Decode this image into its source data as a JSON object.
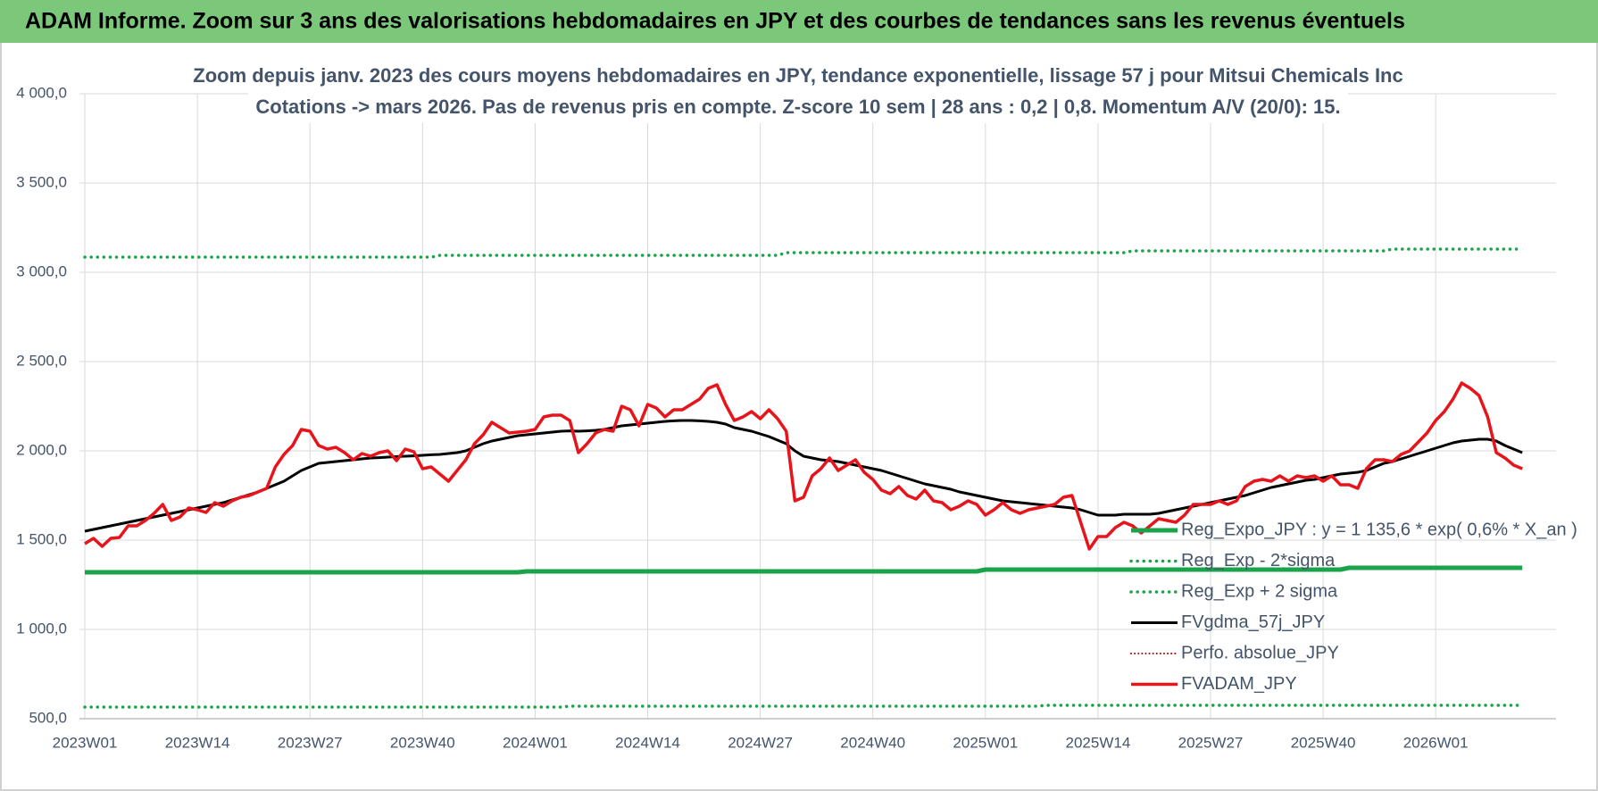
{
  "chart_data": {
    "type": "line",
    "title": "ADAM Informe. Zoom sur 3 ans des valorisations hebdomadaires en JPY et des courbes de tendances sans les revenus éventuels",
    "subtitle": [
      "Zoom depuis janv. 2023 des cours moyens hebdomadaires en JPY, tendance exponentielle, lissage 57 j pour Mitsui Chemicals Inc",
      "Cotations -> mars 2026. Pas de revenus pris en compte. Z-score 10 sem | 28 ans : 0,2 | 0,8. Momentum A/V (20/0): 15."
    ],
    "categories": [
      "2023W01",
      null,
      null,
      null,
      null,
      null,
      null,
      null,
      null,
      null,
      null,
      null,
      null,
      "2023W14",
      null,
      null,
      null,
      null,
      null,
      null,
      null,
      null,
      null,
      null,
      null,
      null,
      "2023W27",
      null,
      null,
      null,
      null,
      null,
      null,
      null,
      null,
      null,
      null,
      null,
      null,
      "2023W40",
      null,
      null,
      null,
      null,
      null,
      null,
      null,
      null,
      null,
      null,
      null,
      null,
      "2024W01",
      null,
      null,
      null,
      null,
      null,
      null,
      null,
      null,
      null,
      null,
      null,
      null,
      "2024W14",
      null,
      null,
      null,
      null,
      null,
      null,
      null,
      null,
      null,
      null,
      null,
      null,
      "2024W27",
      null,
      null,
      null,
      null,
      null,
      null,
      null,
      null,
      null,
      null,
      null,
      null,
      "2024W40",
      null,
      null,
      null,
      null,
      null,
      null,
      null,
      null,
      null,
      null,
      null,
      null,
      "2025W01",
      null,
      null,
      null,
      null,
      null,
      null,
      null,
      null,
      null,
      null,
      null,
      null,
      "2025W14",
      null,
      null,
      null,
      null,
      null,
      null,
      null,
      null,
      null,
      null,
      null,
      null,
      "2025W27",
      null,
      null,
      null,
      null,
      null,
      null,
      null,
      null,
      null,
      null,
      null,
      null,
      "2025W40",
      null,
      null,
      null,
      null,
      null,
      null,
      null,
      null,
      null,
      null,
      null,
      null,
      "2026W01",
      null,
      null,
      null,
      null,
      null,
      null,
      null,
      null,
      null,
      null
    ],
    "ylim": [
      500,
      4000
    ],
    "yticks": [
      {
        "value": 500,
        "label": "500,0"
      },
      {
        "value": 1000,
        "label": "1 000,0"
      },
      {
        "value": 1500,
        "label": "1 500,0"
      },
      {
        "value": 2000,
        "label": "2 000,0"
      },
      {
        "value": 2500,
        "label": "2 500,0"
      },
      {
        "value": 3000,
        "label": "3 000,0"
      },
      {
        "value": 3500,
        "label": "3 500,0"
      },
      {
        "value": 4000,
        "label": "4 000,0"
      }
    ],
    "grid": true,
    "legend": "lower right",
    "series": [
      {
        "name": "Reg_Expo_JPY : y = 1 135,6 * exp( 0,6% *  X_an )",
        "color": "#1aa34a",
        "style": "solid",
        "width": 5,
        "values": [
          1320,
          1320,
          1320,
          1320,
          1320,
          1320,
          1320,
          1320,
          1320,
          1320,
          1320,
          1320,
          1320,
          1320,
          1320,
          1320,
          1320,
          1320,
          1320,
          1320,
          1320,
          1320,
          1320,
          1320,
          1320,
          1320,
          1320,
          1320,
          1320,
          1320,
          1320,
          1320,
          1320,
          1320,
          1320,
          1320,
          1320,
          1320,
          1320,
          1320,
          1320,
          1320,
          1320,
          1320,
          1320,
          1320,
          1320,
          1320,
          1320,
          1320,
          1320,
          1325,
          1325,
          1325,
          1325,
          1325,
          1325,
          1325,
          1325,
          1325,
          1325,
          1325,
          1325,
          1325,
          1325,
          1325,
          1325,
          1325,
          1325,
          1325,
          1325,
          1325,
          1325,
          1325,
          1325,
          1325,
          1325,
          1325,
          1325,
          1325,
          1325,
          1325,
          1325,
          1325,
          1325,
          1325,
          1325,
          1325,
          1325,
          1325,
          1325,
          1325,
          1325,
          1325,
          1325,
          1325,
          1325,
          1325,
          1325,
          1325,
          1325,
          1325,
          1325,
          1325,
          1335,
          1335,
          1335,
          1335,
          1335,
          1335,
          1335,
          1335,
          1335,
          1335,
          1335,
          1335,
          1335,
          1335,
          1335,
          1335,
          1335,
          1335,
          1335,
          1335,
          1335,
          1335,
          1335,
          1335,
          1335,
          1335,
          1335,
          1335,
          1335,
          1335,
          1335,
          1335,
          1335,
          1335,
          1335,
          1335,
          1335,
          1335,
          1335,
          1335,
          1335,
          1335,
          1345,
          1345,
          1345,
          1345,
          1345,
          1345,
          1345,
          1345,
          1345,
          1345,
          1345,
          1345,
          1345,
          1345,
          1345,
          1345,
          1345,
          1345,
          1345,
          1345,
          1345
        ]
      },
      {
        "name": "Reg_Exp - 2*sigma",
        "color": "#1aa34a",
        "style": "dotted",
        "width": 3.5,
        "values": [
          565,
          565,
          565,
          565,
          565,
          565,
          565,
          565,
          565,
          565,
          565,
          565,
          565,
          565,
          565,
          565,
          565,
          565,
          565,
          565,
          565,
          565,
          565,
          565,
          565,
          565,
          565,
          565,
          565,
          565,
          565,
          565,
          565,
          565,
          565,
          565,
          565,
          565,
          565,
          565,
          565,
          565,
          565,
          565,
          565,
          565,
          565,
          565,
          565,
          565,
          565,
          565,
          565,
          565,
          565,
          565,
          570,
          570,
          570,
          570,
          570,
          570,
          570,
          570,
          570,
          570,
          570,
          570,
          570,
          570,
          570,
          570,
          570,
          570,
          570,
          570,
          570,
          570,
          570,
          570,
          570,
          570,
          570,
          570,
          570,
          570,
          570,
          570,
          570,
          570,
          570,
          570,
          570,
          570,
          570,
          570,
          570,
          570,
          570,
          570,
          570,
          570,
          570,
          570,
          570,
          570,
          570,
          570,
          570,
          570,
          570,
          575,
          575,
          575,
          575,
          575,
          575,
          575,
          575,
          575,
          575,
          575,
          575,
          575,
          575,
          575,
          575,
          575,
          575,
          575,
          575,
          575,
          575,
          575,
          575,
          575,
          575,
          575,
          575,
          575,
          575,
          575,
          575,
          575,
          575,
          575,
          575,
          575,
          575,
          575,
          575,
          575,
          575,
          575,
          575,
          575,
          575,
          575,
          575,
          575,
          575,
          575,
          575,
          575,
          575,
          575,
          575
        ]
      },
      {
        "name": "Reg_Exp + 2 sigma",
        "color": "#1aa34a",
        "style": "dotted",
        "width": 3.5,
        "values": [
          3085,
          3085,
          3085,
          3085,
          3085,
          3085,
          3085,
          3085,
          3085,
          3085,
          3085,
          3085,
          3085,
          3085,
          3085,
          3085,
          3085,
          3085,
          3085,
          3085,
          3085,
          3085,
          3085,
          3085,
          3085,
          3085,
          3085,
          3085,
          3085,
          3085,
          3085,
          3085,
          3085,
          3085,
          3085,
          3085,
          3085,
          3085,
          3085,
          3085,
          3085,
          3095,
          3095,
          3095,
          3095,
          3095,
          3095,
          3095,
          3095,
          3095,
          3095,
          3095,
          3095,
          3095,
          3095,
          3095,
          3095,
          3095,
          3095,
          3095,
          3095,
          3095,
          3095,
          3095,
          3095,
          3095,
          3095,
          3095,
          3095,
          3095,
          3095,
          3095,
          3095,
          3095,
          3095,
          3095,
          3095,
          3095,
          3095,
          3095,
          3095,
          3110,
          3110,
          3110,
          3110,
          3110,
          3110,
          3110,
          3110,
          3110,
          3110,
          3110,
          3110,
          3110,
          3110,
          3110,
          3110,
          3110,
          3110,
          3110,
          3110,
          3110,
          3110,
          3110,
          3110,
          3110,
          3110,
          3110,
          3110,
          3110,
          3110,
          3110,
          3110,
          3110,
          3110,
          3110,
          3110,
          3110,
          3110,
          3110,
          3110,
          3120,
          3120,
          3120,
          3120,
          3120,
          3120,
          3120,
          3120,
          3120,
          3120,
          3120,
          3120,
          3120,
          3120,
          3120,
          3120,
          3120,
          3120,
          3120,
          3120,
          3120,
          3120,
          3120,
          3120,
          3120,
          3120,
          3120,
          3120,
          3120,
          3120,
          3130,
          3130,
          3130,
          3130,
          3130,
          3130,
          3130,
          3130,
          3130,
          3130,
          3130,
          3130,
          3130,
          3130,
          3130,
          3130
        ]
      },
      {
        "name": "FVgdma_57j_JPY",
        "color": "#000000",
        "style": "solid",
        "width": 3,
        "values": [
          1550,
          1560,
          1570,
          1580,
          1590,
          1600,
          1610,
          1620,
          1630,
          1640,
          1650,
          1660,
          1670,
          1680,
          1690,
          1700,
          1710,
          1725,
          1740,
          1755,
          1770,
          1790,
          1810,
          1830,
          1860,
          1890,
          1910,
          1930,
          1935,
          1940,
          1945,
          1950,
          1955,
          1960,
          1962,
          1965,
          1968,
          1970,
          1972,
          1975,
          1978,
          1980,
          1985,
          1990,
          2000,
          2020,
          2040,
          2055,
          2065,
          2075,
          2085,
          2090,
          2095,
          2100,
          2105,
          2110,
          2112,
          2110,
          2112,
          2115,
          2120,
          2130,
          2140,
          2145,
          2150,
          2155,
          2160,
          2165,
          2168,
          2170,
          2170,
          2168,
          2165,
          2160,
          2150,
          2130,
          2120,
          2110,
          2095,
          2080,
          2060,
          2040,
          2000,
          1970,
          1960,
          1950,
          1945,
          1940,
          1930,
          1920,
          1910,
          1900,
          1890,
          1875,
          1860,
          1845,
          1830,
          1815,
          1805,
          1795,
          1785,
          1770,
          1760,
          1750,
          1740,
          1730,
          1720,
          1715,
          1710,
          1705,
          1700,
          1695,
          1690,
          1685,
          1680,
          1670,
          1655,
          1640,
          1640,
          1640,
          1645,
          1645,
          1645,
          1645,
          1650,
          1660,
          1670,
          1680,
          1690,
          1700,
          1710,
          1720,
          1730,
          1740,
          1750,
          1765,
          1780,
          1795,
          1805,
          1815,
          1825,
          1835,
          1840,
          1850,
          1860,
          1870,
          1875,
          1880,
          1890,
          1910,
          1930,
          1940,
          1955,
          1970,
          1985,
          2000,
          2015,
          2030,
          2045,
          2055,
          2060,
          2065,
          2065,
          2055,
          2030,
          2010,
          1990
        ]
      },
      {
        "name": "Perfo. absolue_JPY",
        "color": "#c00000",
        "style": "dotted",
        "width": 2
      },
      {
        "name": "FVADAM_JPY",
        "color": "#e8141b",
        "style": "solid",
        "width": 3.5,
        "values": [
          1480,
          1510,
          1465,
          1510,
          1515,
          1580,
          1580,
          1610,
          1650,
          1700,
          1610,
          1630,
          1680,
          1670,
          1655,
          1710,
          1690,
          1720,
          1740,
          1750,
          1770,
          1790,
          1910,
          1980,
          2030,
          2120,
          2110,
          2030,
          2010,
          2020,
          1990,
          1950,
          1985,
          1970,
          1990,
          2000,
          1945,
          2010,
          1995,
          1900,
          1910,
          1870,
          1830,
          1890,
          1950,
          2040,
          2090,
          2160,
          2130,
          2100,
          2105,
          2110,
          2120,
          2190,
          2200,
          2200,
          2170,
          1990,
          2040,
          2100,
          2120,
          2110,
          2250,
          2230,
          2140,
          2260,
          2240,
          2190,
          2230,
          2230,
          2260,
          2290,
          2350,
          2370,
          2260,
          2170,
          2190,
          2220,
          2180,
          2230,
          2180,
          2110,
          1720,
          1740,
          1860,
          1900,
          1960,
          1890,
          1920,
          1950,
          1880,
          1840,
          1780,
          1760,
          1800,
          1750,
          1730,
          1780,
          1720,
          1710,
          1670,
          1690,
          1720,
          1700,
          1640,
          1670,
          1710,
          1670,
          1650,
          1670,
          1680,
          1690,
          1700,
          1740,
          1750,
          1600,
          1450,
          1520,
          1520,
          1570,
          1600,
          1580,
          1540,
          1580,
          1620,
          1610,
          1600,
          1640,
          1700,
          1700,
          1700,
          1720,
          1700,
          1720,
          1800,
          1830,
          1840,
          1830,
          1860,
          1830,
          1860,
          1850,
          1860,
          1830,
          1860,
          1810,
          1810,
          1790,
          1900,
          1950,
          1950,
          1940,
          1980,
          2000,
          2050,
          2100,
          2170,
          2220,
          2290,
          2380,
          2350,
          2310,
          2190,
          1990,
          1960,
          1920,
          1900
        ]
      }
    ]
  }
}
